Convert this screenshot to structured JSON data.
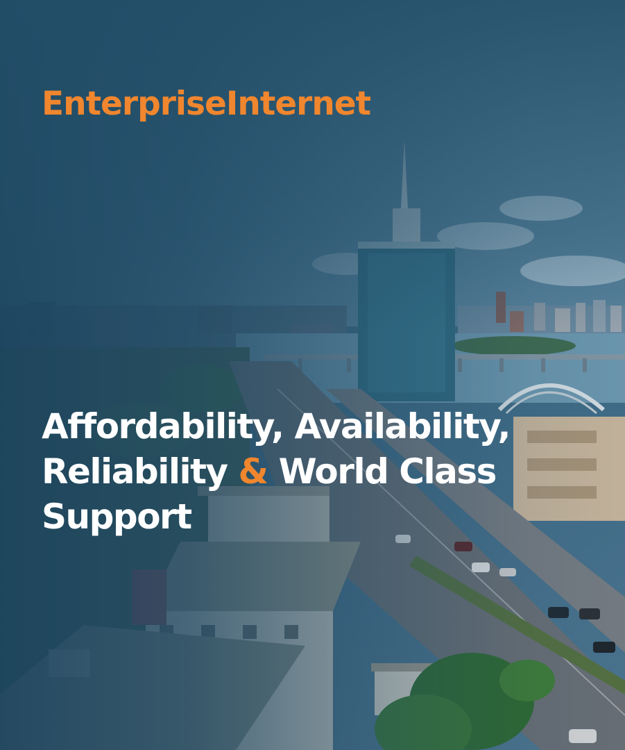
{
  "banner": {
    "title": "EnterpriseInternet",
    "headline_part1": "Affordability, Availability, Reliability ",
    "headline_amp": "&",
    "headline_part2": " World Class Support"
  },
  "colors": {
    "accent": "#f0862e",
    "text": "#ffffff",
    "overlay": "#1b435e"
  }
}
